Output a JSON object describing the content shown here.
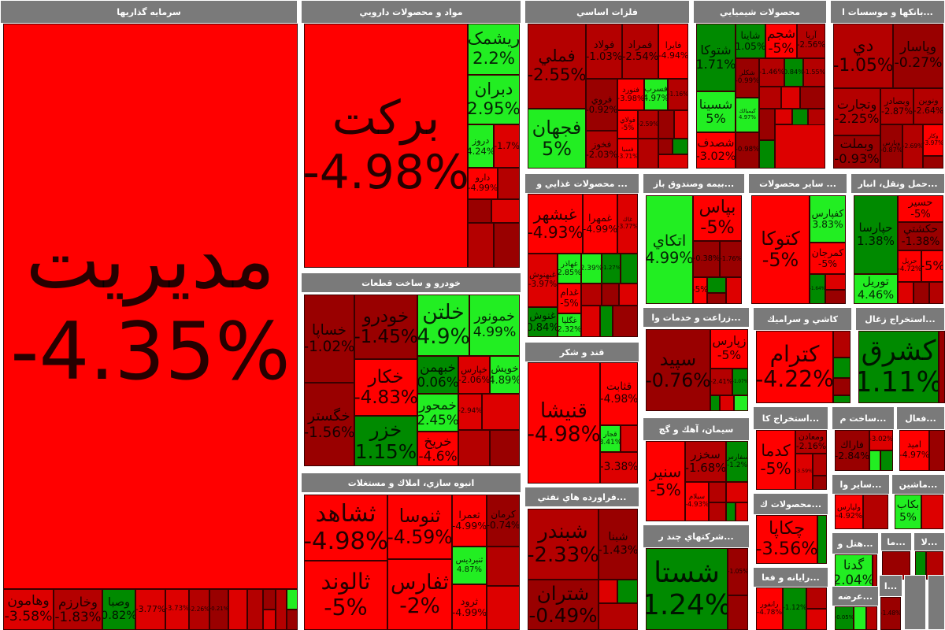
{
  "colors": {
    "R": "#ff0000",
    "r": "#dd0000",
    "d": "#b40000",
    "D": "#990000",
    "G": "#22ee22",
    "g": "#008a00"
  },
  "sectors": [
    {
      "label": "سرمایه گذاریها",
      "tiles": [
        {
          "symbol": "مدیریت",
          "change": "-4.35%",
          "color": "R"
        },
        {
          "symbol": "وهامون",
          "change": "-3.58%",
          "color": "r"
        },
        {
          "symbol": "وخارزم",
          "change": "-1.83%",
          "color": "d"
        },
        {
          "symbol": "وصبا",
          "change": "0.82%",
          "color": "g"
        },
        {
          "symbol": "",
          "change": "-3.77%",
          "color": "r"
        },
        {
          "symbol": "",
          "change": "-3.73%",
          "color": "r"
        },
        {
          "symbol": "",
          "change": "-2.26%",
          "color": "d"
        },
        {
          "symbol": "",
          "change": "-0.21%",
          "color": "D"
        }
      ]
    },
    {
      "label": "مواد و محصولات دارويي",
      "tiles": [
        {
          "symbol": "برکت",
          "change": "-4.98%",
          "color": "R"
        },
        {
          "symbol": "ريشمک",
          "change": "2.2%",
          "color": "G"
        },
        {
          "symbol": "دبران",
          "change": "2.95%",
          "color": "G"
        },
        {
          "symbol": "دروز",
          "change": "4.24%",
          "color": "G"
        },
        {
          "symbol": "",
          "change": "-1.7%",
          "color": "r"
        },
        {
          "symbol": "دارو",
          "change": "-4.99%",
          "color": "R"
        }
      ]
    },
    {
      "label": "خودرو و ساخت قطعات",
      "tiles": [
        {
          "symbol": "خساپا",
          "change": "-1.02%",
          "color": "D"
        },
        {
          "symbol": "خودرو",
          "change": "-1.45%",
          "color": "D"
        },
        {
          "symbol": "خلتن",
          "change": "4.9%",
          "color": "G"
        },
        {
          "symbol": "خمونور",
          "change": "4.99%",
          "color": "G"
        },
        {
          "symbol": "خگستر",
          "change": "-1.56%",
          "color": "D"
        },
        {
          "symbol": "خكار",
          "change": "-4.83%",
          "color": "R"
        },
        {
          "symbol": "خزر",
          "change": "1.15%",
          "color": "g"
        },
        {
          "symbol": "خبهمن",
          "change": "0.06%",
          "color": "g"
        },
        {
          "symbol": "خپارس",
          "change": "-2.06%",
          "color": "r"
        },
        {
          "symbol": "خويش",
          "change": "4.89%",
          "color": "G"
        },
        {
          "symbol": "خمحور",
          "change": "2.45%",
          "color": "G"
        },
        {
          "symbol": "خريخ",
          "change": "-4.6%",
          "color": "R"
        },
        {
          "symbol": "",
          "change": "-2.94%",
          "color": "r"
        }
      ]
    },
    {
      "label": "انبوه سازي، املاك و مستغلات",
      "tiles": [
        {
          "symbol": "ثشاهد",
          "change": "-4.98%",
          "color": "R"
        },
        {
          "symbol": "ثالوند",
          "change": "-5%",
          "color": "R"
        },
        {
          "symbol": "ثنوسا",
          "change": "-4.59%",
          "color": "R"
        },
        {
          "symbol": "ثفارس",
          "change": "-2%",
          "color": "R"
        },
        {
          "symbol": "ثعمرا",
          "change": "-4.99%",
          "color": "R"
        },
        {
          "symbol": "كرمان",
          "change": "-0.74%",
          "color": "D"
        },
        {
          "symbol": "ثنيرديس",
          "change": "4.87%",
          "color": "G"
        },
        {
          "symbol": "ثرود",
          "change": "-4.99%",
          "color": "R"
        }
      ]
    },
    {
      "label": "فلزات اساسي",
      "tiles": [
        {
          "symbol": "فملي",
          "change": "-2.55%",
          "color": "d"
        },
        {
          "symbol": "فجهان",
          "change": "5%",
          "color": "G"
        },
        {
          "symbol": "فولاد",
          "change": "-1.03%",
          "color": "d"
        },
        {
          "symbol": "فمراد",
          "change": "-2.54%",
          "color": "d"
        },
        {
          "symbol": "فايرا",
          "change": "-4.94%",
          "color": "R"
        },
        {
          "symbol": "فروي",
          "change": "-0.92%",
          "color": "D"
        },
        {
          "symbol": "فخوز",
          "change": "-2.03%",
          "color": "d"
        },
        {
          "symbol": "فنورد",
          "change": "-3.98%",
          "color": "R"
        },
        {
          "symbol": "فسرب",
          "change": "4.97%",
          "color": "G"
        },
        {
          "symbol": "",
          "change": "-1.16%",
          "color": "d"
        },
        {
          "symbol": "فولاي",
          "change": "-5%",
          "color": "R"
        },
        {
          "symbol": "",
          "change": "-2.59%",
          "color": "d"
        },
        {
          "symbol": "فسبا",
          "change": "-3.71%",
          "color": "R"
        }
      ]
    },
    {
      "label": "محصولات شيميايي",
      "tiles": [
        {
          "symbol": "شتوكا",
          "change": "1.71%",
          "color": "g"
        },
        {
          "symbol": "شسينا",
          "change": "5%",
          "color": "G"
        },
        {
          "symbol": "شصدف",
          "change": "-3.02%",
          "color": "R"
        },
        {
          "symbol": "شاينا",
          "change": "1.05%",
          "color": "g"
        },
        {
          "symbol": "شجم",
          "change": "-5%",
          "color": "R"
        },
        {
          "symbol": "آريا",
          "change": "-2.56%",
          "color": "d"
        },
        {
          "symbol": "شكلر",
          "change": "-0.99%",
          "color": "D"
        },
        {
          "symbol": "",
          "change": "-1.46%",
          "color": "d"
        },
        {
          "symbol": "",
          "change": "0.84%",
          "color": "g"
        },
        {
          "symbol": "",
          "change": "-1.55%",
          "color": "d"
        },
        {
          "symbol": "كيميالك",
          "change": "4.97%",
          "color": "G"
        },
        {
          "symbol": "",
          "change": "-0.98%",
          "color": "D"
        }
      ]
    },
    {
      "label": "...بانكها و موسسات ا",
      "tiles": [
        {
          "symbol": "دي",
          "change": "-1.05%",
          "color": "d"
        },
        {
          "symbol": "وپاسار",
          "change": "-0.27%",
          "color": "D"
        },
        {
          "symbol": "وتجارت",
          "change": "-2.25%",
          "color": "d"
        },
        {
          "symbol": "وبصادر",
          "change": "-2.87%",
          "color": "d"
        },
        {
          "symbol": "ونوين",
          "change": "-2.64%",
          "color": "d"
        },
        {
          "symbol": "وبملت",
          "change": "-0.93%",
          "color": "D"
        },
        {
          "symbol": "وپارس",
          "change": "-0.87%",
          "color": "D"
        },
        {
          "symbol": "",
          "change": "-2.69%",
          "color": "d"
        },
        {
          "symbol": "وكار",
          "change": "-3.97%",
          "color": "R"
        }
      ]
    },
    {
      "label": "... محصولات غذايي و",
      "tiles": [
        {
          "symbol": "غبشهر",
          "change": "-4.93%",
          "color": "R"
        },
        {
          "symbol": "غمهرا",
          "change": "-4.99%",
          "color": "R"
        },
        {
          "symbol": "غاك",
          "change": "-3.77%",
          "color": "r"
        },
        {
          "symbol": "غبهنوش",
          "change": "-3.97%",
          "color": "r"
        },
        {
          "symbol": "غنوش",
          "change": "0.84%",
          "color": "g"
        },
        {
          "symbol": "غهاذر",
          "change": "2.85%",
          "color": "G"
        },
        {
          "symbol": "",
          "change": "2.39%",
          "color": "G"
        },
        {
          "symbol": "",
          "change": "-1.27%",
          "color": "g"
        },
        {
          "symbol": "غدام",
          "change": "-5%",
          "color": "R"
        },
        {
          "symbol": "غگلپا",
          "change": "2.32%",
          "color": "G"
        }
      ]
    },
    {
      "label": "...بيمه وصندوق باز",
      "tiles": [
        {
          "symbol": "اتكاي",
          "change": "4.99%",
          "color": "G"
        },
        {
          "symbol": "بپاس",
          "change": "-5%",
          "color": "R"
        },
        {
          "symbol": "",
          "change": "-0.38%",
          "color": "D"
        },
        {
          "symbol": "",
          "change": "-1.76%",
          "color": "D"
        },
        {
          "symbol": "",
          "change": "-5%",
          "color": "R"
        }
      ]
    },
    {
      "label": "... ساير محصولات",
      "tiles": [
        {
          "symbol": "كتوكا",
          "change": "-5%",
          "color": "R"
        },
        {
          "symbol": "كفپارس",
          "change": "3.83%",
          "color": "G"
        },
        {
          "symbol": "كمرجان",
          "change": "-5%",
          "color": "R"
        },
        {
          "symbol": "",
          "change": "-1.64%",
          "color": "g"
        }
      ]
    },
    {
      "label": "...حمل ونقل، انبار",
      "tiles": [
        {
          "symbol": "حپارسا",
          "change": "1.38%",
          "color": "g"
        },
        {
          "symbol": "توريل",
          "change": "4.46%",
          "color": "G"
        },
        {
          "symbol": "حسير",
          "change": "-5%",
          "color": "R"
        },
        {
          "symbol": "حكشتي",
          "change": "-1.38%",
          "color": "D"
        },
        {
          "symbol": "حريل",
          "change": "-4.72%",
          "color": "R"
        },
        {
          "symbol": "",
          "change": "-5%",
          "color": "R"
        }
      ]
    },
    {
      "label": "قند و شكر",
      "tiles": [
        {
          "symbol": "قنيشا",
          "change": "-4.98%",
          "color": "R"
        },
        {
          "symbol": "قثابت",
          "change": "-4.98%",
          "color": "R"
        },
        {
          "symbol": "قجار",
          "change": "3.41%",
          "color": "G"
        },
        {
          "symbol": "",
          "change": "-3.38%",
          "color": "r"
        }
      ]
    },
    {
      "label": "...فراورده هاي نفتي",
      "tiles": [
        {
          "symbol": "شبندر",
          "change": "-2.33%",
          "color": "d"
        },
        {
          "symbol": "شتران",
          "change": "-0.49%",
          "color": "D"
        },
        {
          "symbol": "شبنا",
          "change": "-1.43%",
          "color": "D"
        }
      ]
    },
    {
      "label": "...زراعت و خدمات وا",
      "tiles": [
        {
          "symbol": "سپيد",
          "change": "-0.76%",
          "color": "D"
        },
        {
          "symbol": "زپارس",
          "change": "-5%",
          "color": "R"
        },
        {
          "symbol": "",
          "change": "-2.41%",
          "color": "d"
        },
        {
          "symbol": "",
          "change": "-1.07%",
          "color": "g"
        }
      ]
    },
    {
      "label": "سيمان، آهك و گچ",
      "tiles": [
        {
          "symbol": "سنير",
          "change": "-5%",
          "color": "R"
        },
        {
          "symbol": "سخزر",
          "change": "-1.68%",
          "color": "d"
        },
        {
          "symbol": "سفارس",
          "change": "-1.2%",
          "color": "g"
        },
        {
          "symbol": "سيلام",
          "change": "-4.93%",
          "color": "R"
        }
      ]
    },
    {
      "label": "...شركتهاي چند ر",
      "tiles": [
        {
          "symbol": "شستا",
          "change": "1.24%",
          "color": "g"
        },
        {
          "symbol": "",
          "change": "-1.05%",
          "color": "D"
        }
      ]
    },
    {
      "label": "كاشي و سراميك",
      "tiles": [
        {
          "symbol": "كترام",
          "change": "-4.22%",
          "color": "R"
        }
      ]
    },
    {
      "label": "...استخراج زغال",
      "tiles": [
        {
          "symbol": "كشرق",
          "change": "1.11%",
          "color": "g"
        }
      ]
    },
    {
      "label": "...استخراج كا",
      "tiles": [
        {
          "symbol": "كدما",
          "change": "-5%",
          "color": "R"
        },
        {
          "symbol": "ومعادن",
          "change": "-2.16%",
          "color": "d"
        },
        {
          "symbol": "",
          "change": "-3.59%",
          "color": "r"
        }
      ]
    },
    {
      "label": "...ساخت م",
      "tiles": [
        {
          "symbol": "فاراك",
          "change": "-2.84%",
          "color": "D"
        },
        {
          "symbol": "",
          "change": "-3.02%",
          "color": "r"
        }
      ]
    },
    {
      "label": "...فعال",
      "tiles": [
        {
          "symbol": "اميد",
          "change": "-4.97%",
          "color": "R"
        }
      ]
    },
    {
      "label": "...محصولات ك",
      "tiles": [
        {
          "symbol": "چكاپا",
          "change": "-3.56%",
          "color": "R"
        }
      ]
    },
    {
      "label": "...رايانه و فعا",
      "tiles": [
        {
          "symbol": "رانفور",
          "change": "-4.78%",
          "color": "R"
        },
        {
          "symbol": "",
          "change": "-1.12%",
          "color": "g"
        }
      ]
    },
    {
      "label": "...ساير وا",
      "tiles": [
        {
          "symbol": "ولپارس",
          "change": "-4.92%",
          "color": "R"
        }
      ]
    },
    {
      "label": "...ماشين",
      "tiles": [
        {
          "symbol": "بكاب",
          "change": "5%",
          "color": "G"
        }
      ]
    },
    {
      "label": "...هتل و",
      "tiles": [
        {
          "symbol": "گدنا",
          "change": "2.04%",
          "color": "G"
        }
      ]
    },
    {
      "label": "...ما",
      "tiles": []
    },
    {
      "label": "...لا",
      "tiles": []
    },
    {
      "label": "...عرضه",
      "tiles": [
        {
          "symbol": "",
          "change": "-0.05%",
          "color": "g"
        }
      ]
    },
    {
      "label": "...ا",
      "tiles": [
        {
          "symbol": "",
          "change": "-1.48%",
          "color": "D"
        }
      ]
    }
  ]
}
